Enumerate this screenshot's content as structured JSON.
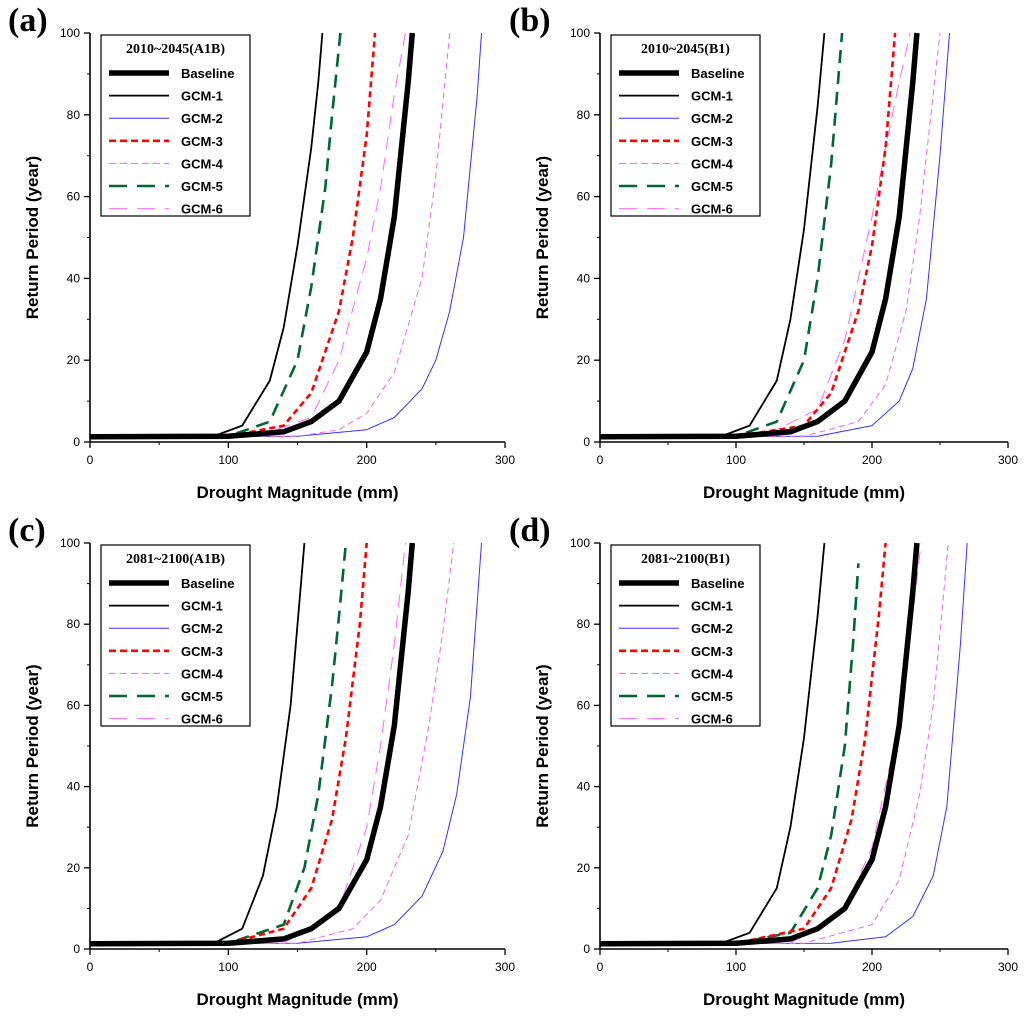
{
  "chart_data": [
    {
      "type": "line",
      "panel_label": "(a)",
      "title": "2010~2045(A1B)",
      "xlabel": "Drought Magnitude (mm)",
      "ylabel": "Return Period (year)",
      "xlim": [
        0,
        300
      ],
      "ylim": [
        0,
        100
      ],
      "xticks": [
        "0",
        "100",
        "200",
        "300"
      ],
      "yticks": [
        "0",
        "20",
        "40",
        "60",
        "80",
        "100"
      ],
      "legend_position": "top-left",
      "series": [
        {
          "name": "Baseline",
          "x": [
            0,
            100,
            140,
            160,
            180,
            200,
            210,
            220,
            230,
            233
          ],
          "y": [
            1.3,
            1.4,
            2.5,
            5,
            10,
            22,
            35,
            55,
            88,
            100
          ]
        },
        {
          "name": "GCM-1",
          "x": [
            0,
            90,
            110,
            130,
            140,
            150,
            160,
            165,
            168
          ],
          "y": [
            1.3,
            1.5,
            4,
            15,
            28,
            48,
            72,
            88,
            100
          ]
        },
        {
          "name": "GCM-2",
          "x": [
            0,
            150,
            200,
            220,
            240,
            250,
            260,
            270,
            280,
            283
          ],
          "y": [
            1.3,
            1.4,
            3,
            6,
            13,
            20,
            32,
            50,
            85,
            100
          ]
        },
        {
          "name": "GCM-3",
          "x": [
            0,
            100,
            140,
            160,
            180,
            190,
            200,
            206
          ],
          "y": [
            1.3,
            1.4,
            4,
            12,
            32,
            50,
            75,
            100
          ]
        },
        {
          "name": "GCM-4",
          "x": [
            0,
            150,
            180,
            200,
            220,
            240,
            250,
            260
          ],
          "y": [
            1.3,
            1.4,
            3,
            7,
            17,
            40,
            65,
            100
          ]
        },
        {
          "name": "GCM-5",
          "x": [
            0,
            100,
            130,
            150,
            160,
            170,
            175,
            181
          ],
          "y": [
            1.3,
            1.4,
            5,
            20,
            38,
            62,
            80,
            100
          ]
        },
        {
          "name": "GCM-6",
          "x": [
            0,
            120,
            160,
            180,
            200,
            210,
            220,
            228
          ],
          "y": [
            1.3,
            1.4,
            6,
            20,
            45,
            62,
            85,
            100
          ]
        }
      ]
    },
    {
      "type": "line",
      "panel_label": "(b)",
      "title": "2010~2045(B1)",
      "xlabel": "Drought Magnitude (mm)",
      "ylabel": "Return Period (year)",
      "xlim": [
        0,
        300
      ],
      "ylim": [
        0,
        100
      ],
      "xticks": [
        "0",
        "100",
        "200",
        "300"
      ],
      "yticks": [
        "0",
        "20",
        "40",
        "60",
        "80",
        "100"
      ],
      "legend_position": "top-left",
      "series": [
        {
          "name": "Baseline",
          "x": [
            0,
            100,
            140,
            160,
            180,
            200,
            210,
            220,
            230,
            233
          ],
          "y": [
            1.3,
            1.4,
            2.5,
            5,
            10,
            22,
            35,
            55,
            88,
            100
          ]
        },
        {
          "name": "GCM-1",
          "x": [
            0,
            90,
            110,
            130,
            140,
            150,
            160,
            165
          ],
          "y": [
            1.3,
            1.5,
            4,
            15,
            30,
            52,
            82,
            100
          ]
        },
        {
          "name": "GCM-2",
          "x": [
            0,
            160,
            200,
            220,
            230,
            240,
            250,
            257
          ],
          "y": [
            1.3,
            1.4,
            4,
            10,
            18,
            35,
            70,
            100
          ]
        },
        {
          "name": "GCM-3",
          "x": [
            0,
            100,
            150,
            170,
            190,
            200,
            210,
            217
          ],
          "y": [
            1.3,
            1.4,
            4,
            12,
            32,
            48,
            72,
            100
          ]
        },
        {
          "name": "GCM-4",
          "x": [
            0,
            150,
            190,
            210,
            225,
            235,
            245,
            250
          ],
          "y": [
            1.3,
            1.4,
            5,
            14,
            32,
            55,
            85,
            100
          ]
        },
        {
          "name": "GCM-5",
          "x": [
            0,
            100,
            130,
            150,
            160,
            170,
            178
          ],
          "y": [
            1.3,
            1.4,
            5,
            20,
            40,
            68,
            100
          ]
        },
        {
          "name": "GCM-6",
          "x": [
            0,
            120,
            160,
            180,
            200,
            210,
            220,
            228
          ],
          "y": [
            1.3,
            1.4,
            8,
            25,
            55,
            72,
            88,
            100
          ]
        }
      ]
    },
    {
      "type": "line",
      "panel_label": "(c)",
      "title": "2081~2100(A1B)",
      "xlabel": "Drought Magnitude (mm)",
      "ylabel": "Return Period (year)",
      "xlim": [
        0,
        300
      ],
      "ylim": [
        0,
        100
      ],
      "xticks": [
        "0",
        "100",
        "200",
        "300"
      ],
      "yticks": [
        "0",
        "20",
        "40",
        "60",
        "80",
        "100"
      ],
      "legend_position": "top-left",
      "series": [
        {
          "name": "Baseline",
          "x": [
            0,
            100,
            140,
            160,
            180,
            200,
            210,
            220,
            230,
            233
          ],
          "y": [
            1.3,
            1.4,
            2.5,
            5,
            10,
            22,
            35,
            55,
            88,
            100
          ]
        },
        {
          "name": "GCM-1",
          "x": [
            0,
            90,
            110,
            125,
            135,
            145,
            152,
            155
          ],
          "y": [
            1.3,
            1.5,
            5,
            18,
            35,
            60,
            88,
            100
          ]
        },
        {
          "name": "GCM-2",
          "x": [
            0,
            150,
            200,
            220,
            240,
            255,
            265,
            275,
            283
          ],
          "y": [
            1.3,
            1.4,
            3,
            6,
            13,
            24,
            38,
            62,
            100
          ]
        },
        {
          "name": "GCM-3",
          "x": [
            0,
            100,
            140,
            160,
            175,
            185,
            195,
            200
          ],
          "y": [
            1.3,
            1.4,
            5,
            15,
            32,
            52,
            80,
            100
          ]
        },
        {
          "name": "GCM-4",
          "x": [
            0,
            150,
            190,
            210,
            230,
            245,
            255,
            263
          ],
          "y": [
            1.3,
            1.4,
            5,
            12,
            28,
            55,
            78,
            100
          ]
        },
        {
          "name": "GCM-5",
          "x": [
            0,
            100,
            140,
            155,
            165,
            175,
            180,
            185
          ],
          "y": [
            1.3,
            1.4,
            6,
            20,
            38,
            65,
            82,
            100
          ]
        },
        {
          "name": "GCM-6",
          "x": [
            0,
            140,
            180,
            200,
            210,
            220,
            228
          ],
          "y": [
            1.3,
            1.4,
            10,
            30,
            50,
            75,
            100
          ]
        }
      ]
    },
    {
      "type": "line",
      "panel_label": "(d)",
      "title": "2081~2100(B1)",
      "xlabel": "Drought Magnitude (mm)",
      "ylabel": "Return Period (year)",
      "xlim": [
        0,
        300
      ],
      "ylim": [
        0,
        100
      ],
      "xticks": [
        "0",
        "100",
        "200",
        "300"
      ],
      "yticks": [
        "0",
        "20",
        "40",
        "60",
        "80",
        "100"
      ],
      "legend_position": "top-left",
      "series": [
        {
          "name": "Baseline",
          "x": [
            0,
            100,
            140,
            160,
            180,
            200,
            210,
            220,
            230,
            233
          ],
          "y": [
            1.3,
            1.4,
            2.5,
            5,
            10,
            22,
            35,
            55,
            88,
            100
          ]
        },
        {
          "name": "GCM-1",
          "x": [
            0,
            90,
            110,
            130,
            140,
            150,
            160,
            165
          ],
          "y": [
            1.3,
            1.5,
            4,
            15,
            30,
            52,
            82,
            100
          ]
        },
        {
          "name": "GCM-2",
          "x": [
            0,
            170,
            210,
            230,
            245,
            255,
            265,
            270
          ],
          "y": [
            1.3,
            1.4,
            3,
            8,
            18,
            35,
            75,
            100
          ]
        },
        {
          "name": "GCM-3",
          "x": [
            0,
            100,
            150,
            170,
            185,
            195,
            205,
            210
          ],
          "y": [
            1.3,
            1.4,
            5,
            15,
            32,
            52,
            82,
            100
          ]
        },
        {
          "name": "GCM-4",
          "x": [
            0,
            150,
            200,
            220,
            235,
            245,
            252,
            256
          ],
          "y": [
            1.3,
            1.4,
            6,
            17,
            38,
            60,
            85,
            100
          ]
        },
        {
          "name": "GCM-5",
          "x": [
            0,
            100,
            140,
            160,
            170,
            180,
            186,
            190
          ],
          "y": [
            1.3,
            1.4,
            4,
            15,
            28,
            50,
            75,
            95
          ]
        },
        {
          "name": "GCM-6",
          "x": [
            0,
            140,
            180,
            200,
            215,
            225,
            232,
            236
          ],
          "y": [
            1.3,
            1.4,
            10,
            25,
            48,
            70,
            88,
            100
          ]
        }
      ]
    }
  ],
  "series_styles": {
    "Baseline": {
      "color": "#000000",
      "dash": "solid",
      "weight": "heavy"
    },
    "GCM-1": {
      "color": "#000000",
      "dash": "solid",
      "weight": "thin"
    },
    "GCM-2": {
      "color": "#3333ff",
      "dash": "solid",
      "weight": "hair"
    },
    "GCM-3": {
      "color": "#ff0000",
      "dash": "short-dash",
      "weight": "medium"
    },
    "GCM-4": {
      "color": "#ee66ee",
      "dash": "short-dash",
      "weight": "hair"
    },
    "GCM-5": {
      "color": "#006633",
      "dash": "long-dash",
      "weight": "medium"
    },
    "GCM-6": {
      "color": "#ff66ff",
      "dash": "long-dash",
      "weight": "hair"
    }
  }
}
